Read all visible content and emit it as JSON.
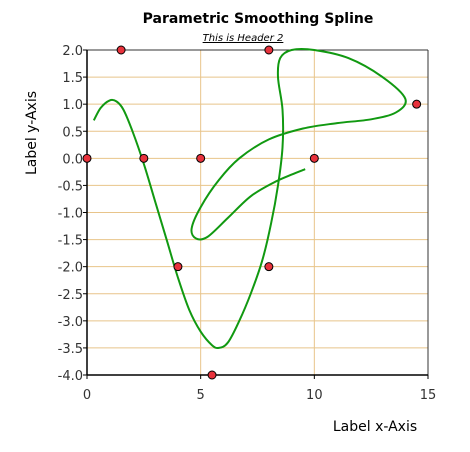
{
  "chart_data": {
    "type": "scatter",
    "title": "Parametric Smoothing Spline",
    "subtitle": "This is Header 2",
    "xlabel": "Label x-Axis",
    "ylabel": "Label y-Axis",
    "xlim": [
      0,
      15
    ],
    "ylim": [
      -4.0,
      2.0
    ],
    "xticks": [
      "0",
      "5",
      "10",
      "15"
    ],
    "yticks": [
      "2.0",
      "1.5",
      "1.0",
      "0.5",
      "0.0",
      "-0.5",
      "-1.0",
      "-1.5",
      "-2.0",
      "-2.5",
      "-3.0",
      "-3.5",
      "-4.0"
    ],
    "grid": true,
    "colors": {
      "grid": "#e8c48a",
      "curve": "#119911",
      "marker_fill": "#e8323c",
      "marker_stroke": "#000000"
    },
    "points": [
      {
        "x": 0,
        "y": 0.0
      },
      {
        "x": 1.5,
        "y": 2.0
      },
      {
        "x": 2.5,
        "y": 0.0
      },
      {
        "x": 4,
        "y": -2.0
      },
      {
        "x": 5,
        "y": 0.0
      },
      {
        "x": 5.5,
        "y": -4.0
      },
      {
        "x": 8,
        "y": 2.0
      },
      {
        "x": 8,
        "y": -2.0
      },
      {
        "x": 10,
        "y": 0.0
      },
      {
        "x": 14.5,
        "y": 1.0
      }
    ],
    "curve": [
      {
        "x": 0.3,
        "y": 0.7
      },
      {
        "x": 0.6,
        "y": 0.93
      },
      {
        "x": 1.0,
        "y": 1.07
      },
      {
        "x": 1.3,
        "y": 1.05
      },
      {
        "x": 1.6,
        "y": 0.9
      },
      {
        "x": 2.0,
        "y": 0.5
      },
      {
        "x": 2.5,
        "y": -0.1
      },
      {
        "x": 3.0,
        "y": -0.8
      },
      {
        "x": 3.5,
        "y": -1.5
      },
      {
        "x": 4.0,
        "y": -2.2
      },
      {
        "x": 4.5,
        "y": -2.8
      },
      {
        "x": 5.0,
        "y": -3.2
      },
      {
        "x": 5.5,
        "y": -3.45
      },
      {
        "x": 5.8,
        "y": -3.5
      },
      {
        "x": 6.2,
        "y": -3.4
      },
      {
        "x": 6.7,
        "y": -3.0
      },
      {
        "x": 7.2,
        "y": -2.5
      },
      {
        "x": 7.7,
        "y": -1.9
      },
      {
        "x": 8.1,
        "y": -1.2
      },
      {
        "x": 8.4,
        "y": -0.5
      },
      {
        "x": 8.6,
        "y": 0.2
      },
      {
        "x": 8.6,
        "y": 0.9
      },
      {
        "x": 8.4,
        "y": 1.5
      },
      {
        "x": 8.5,
        "y": 1.85
      },
      {
        "x": 9.0,
        "y": 2.0
      },
      {
        "x": 10.0,
        "y": 2.0
      },
      {
        "x": 11.5,
        "y": 1.85
      },
      {
        "x": 13.0,
        "y": 1.5
      },
      {
        "x": 14.0,
        "y": 1.1
      },
      {
        "x": 13.6,
        "y": 0.85
      },
      {
        "x": 12.5,
        "y": 0.72
      },
      {
        "x": 11.0,
        "y": 0.65
      },
      {
        "x": 9.5,
        "y": 0.55
      },
      {
        "x": 8.0,
        "y": 0.35
      },
      {
        "x": 6.7,
        "y": 0.0
      },
      {
        "x": 5.8,
        "y": -0.4
      },
      {
        "x": 5.0,
        "y": -0.9
      },
      {
        "x": 4.6,
        "y": -1.3
      },
      {
        "x": 4.8,
        "y": -1.48
      },
      {
        "x": 5.3,
        "y": -1.45
      },
      {
        "x": 6.2,
        "y": -1.1
      },
      {
        "x": 7.2,
        "y": -0.7
      },
      {
        "x": 8.2,
        "y": -0.45
      },
      {
        "x": 9.0,
        "y": -0.3
      },
      {
        "x": 9.6,
        "y": -0.2
      }
    ]
  }
}
